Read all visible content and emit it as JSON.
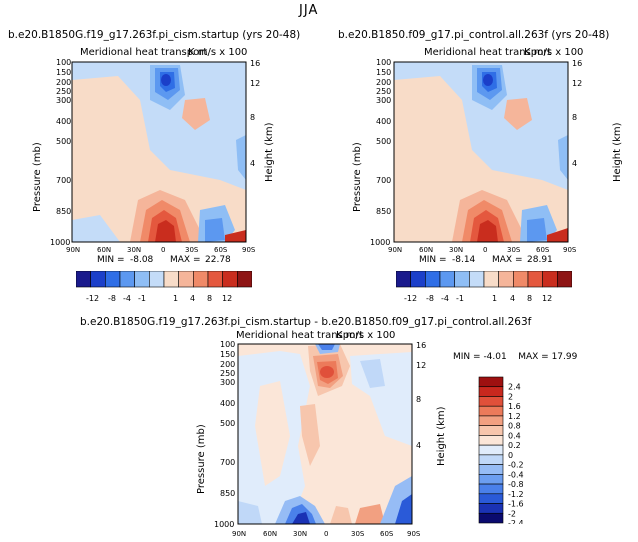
{
  "figure": {
    "season": "JJA"
  },
  "colors": {
    "full_scale": [
      "#1a1a8c",
      "#1b3fc9",
      "#2f6ee6",
      "#5c98f0",
      "#8fbef5",
      "#c4dcf8",
      "#f8dcc8",
      "#f5b59a",
      "#f08a68",
      "#e4583e",
      "#c92d1e",
      "#8e1414"
    ],
    "diff_scale": [
      "#0a0a6e",
      "#1a32b4",
      "#2a5ad8",
      "#4a80ea",
      "#6c9ef0",
      "#96bcf5",
      "#c0d8f8",
      "#e0ecfb",
      "#fbe6d8",
      "#f7c6ad",
      "#f2a081",
      "#ec7a5a",
      "#e0503a",
      "#c8281e",
      "#9e1010"
    ]
  },
  "chart_data": [
    {
      "type": "contour",
      "title": "b.e20.B1850G.f19_g17.263f.pi_cism.startup (yrs 20-48)",
      "subtitle": "Meridional heat transport",
      "units": "K m/s x 100",
      "xlabel": "",
      "ylabel": "Pressure (mb)",
      "y2label": "Height (km)",
      "x_ticks": [
        "90N",
        "60N",
        "30N",
        "0",
        "30S",
        "60S",
        "90S"
      ],
      "y_ticks": [
        100,
        150,
        200,
        250,
        300,
        400,
        500,
        700,
        850,
        1000
      ],
      "y2_ticks": [
        16,
        12,
        8,
        4
      ],
      "stats": {
        "min_label": "MIN =",
        "min": "-8.08",
        "max_label": "MAX =",
        "max": "22.78"
      },
      "colorbar": {
        "labels": [
          "-12",
          "-8",
          "-4",
          "-1",
          "1",
          "4",
          "8",
          "12"
        ]
      }
    },
    {
      "type": "contour",
      "title": "b.e20.B1850.f09_g17.pi_control.all.263f (yrs 20-48)",
      "subtitle": "Meridional heat transport",
      "units": "K m/s x 100",
      "xlabel": "",
      "ylabel": "Pressure (mb)",
      "y2label": "Height (km)",
      "x_ticks": [
        "90N",
        "60N",
        "30N",
        "0",
        "30S",
        "60S",
        "90S"
      ],
      "y_ticks": [
        100,
        150,
        200,
        250,
        300,
        400,
        500,
        700,
        850,
        1000
      ],
      "y2_ticks": [
        16,
        12,
        8,
        4
      ],
      "stats": {
        "min_label": "MIN =",
        "min": "-8.14",
        "max_label": "MAX =",
        "max": "28.91"
      },
      "colorbar": {
        "labels": [
          "-12",
          "-8",
          "-4",
          "-1",
          "1",
          "4",
          "8",
          "12"
        ]
      }
    },
    {
      "type": "contour",
      "title": "b.e20.B1850G.f19_g17.263f.pi_cism.startup - b.e20.B1850.f09_g17.pi_control.all.263f",
      "subtitle": "Meridional heat transport",
      "units": "K m/s x 100",
      "xlabel": "",
      "ylabel": "Pressure (mb)",
      "y2label": "Height (km)",
      "x_ticks": [
        "90N",
        "60N",
        "30N",
        "0",
        "30S",
        "60S",
        "90S"
      ],
      "y_ticks": [
        100,
        150,
        200,
        250,
        300,
        400,
        500,
        700,
        850,
        1000
      ],
      "y2_ticks": [
        16,
        12,
        8,
        4
      ],
      "stats": {
        "min_label": "MIN =",
        "min": "-4.01",
        "max_label": "MAX =",
        "max": "17.99"
      },
      "colorbar": {
        "labels": [
          "2.4",
          "2",
          "1.6",
          "1.2",
          "0.8",
          "0.4",
          "0.2",
          "0",
          "-0.2",
          "-0.4",
          "-0.8",
          "-1.2",
          "-1.6",
          "-2",
          "-2.4"
        ]
      }
    }
  ]
}
